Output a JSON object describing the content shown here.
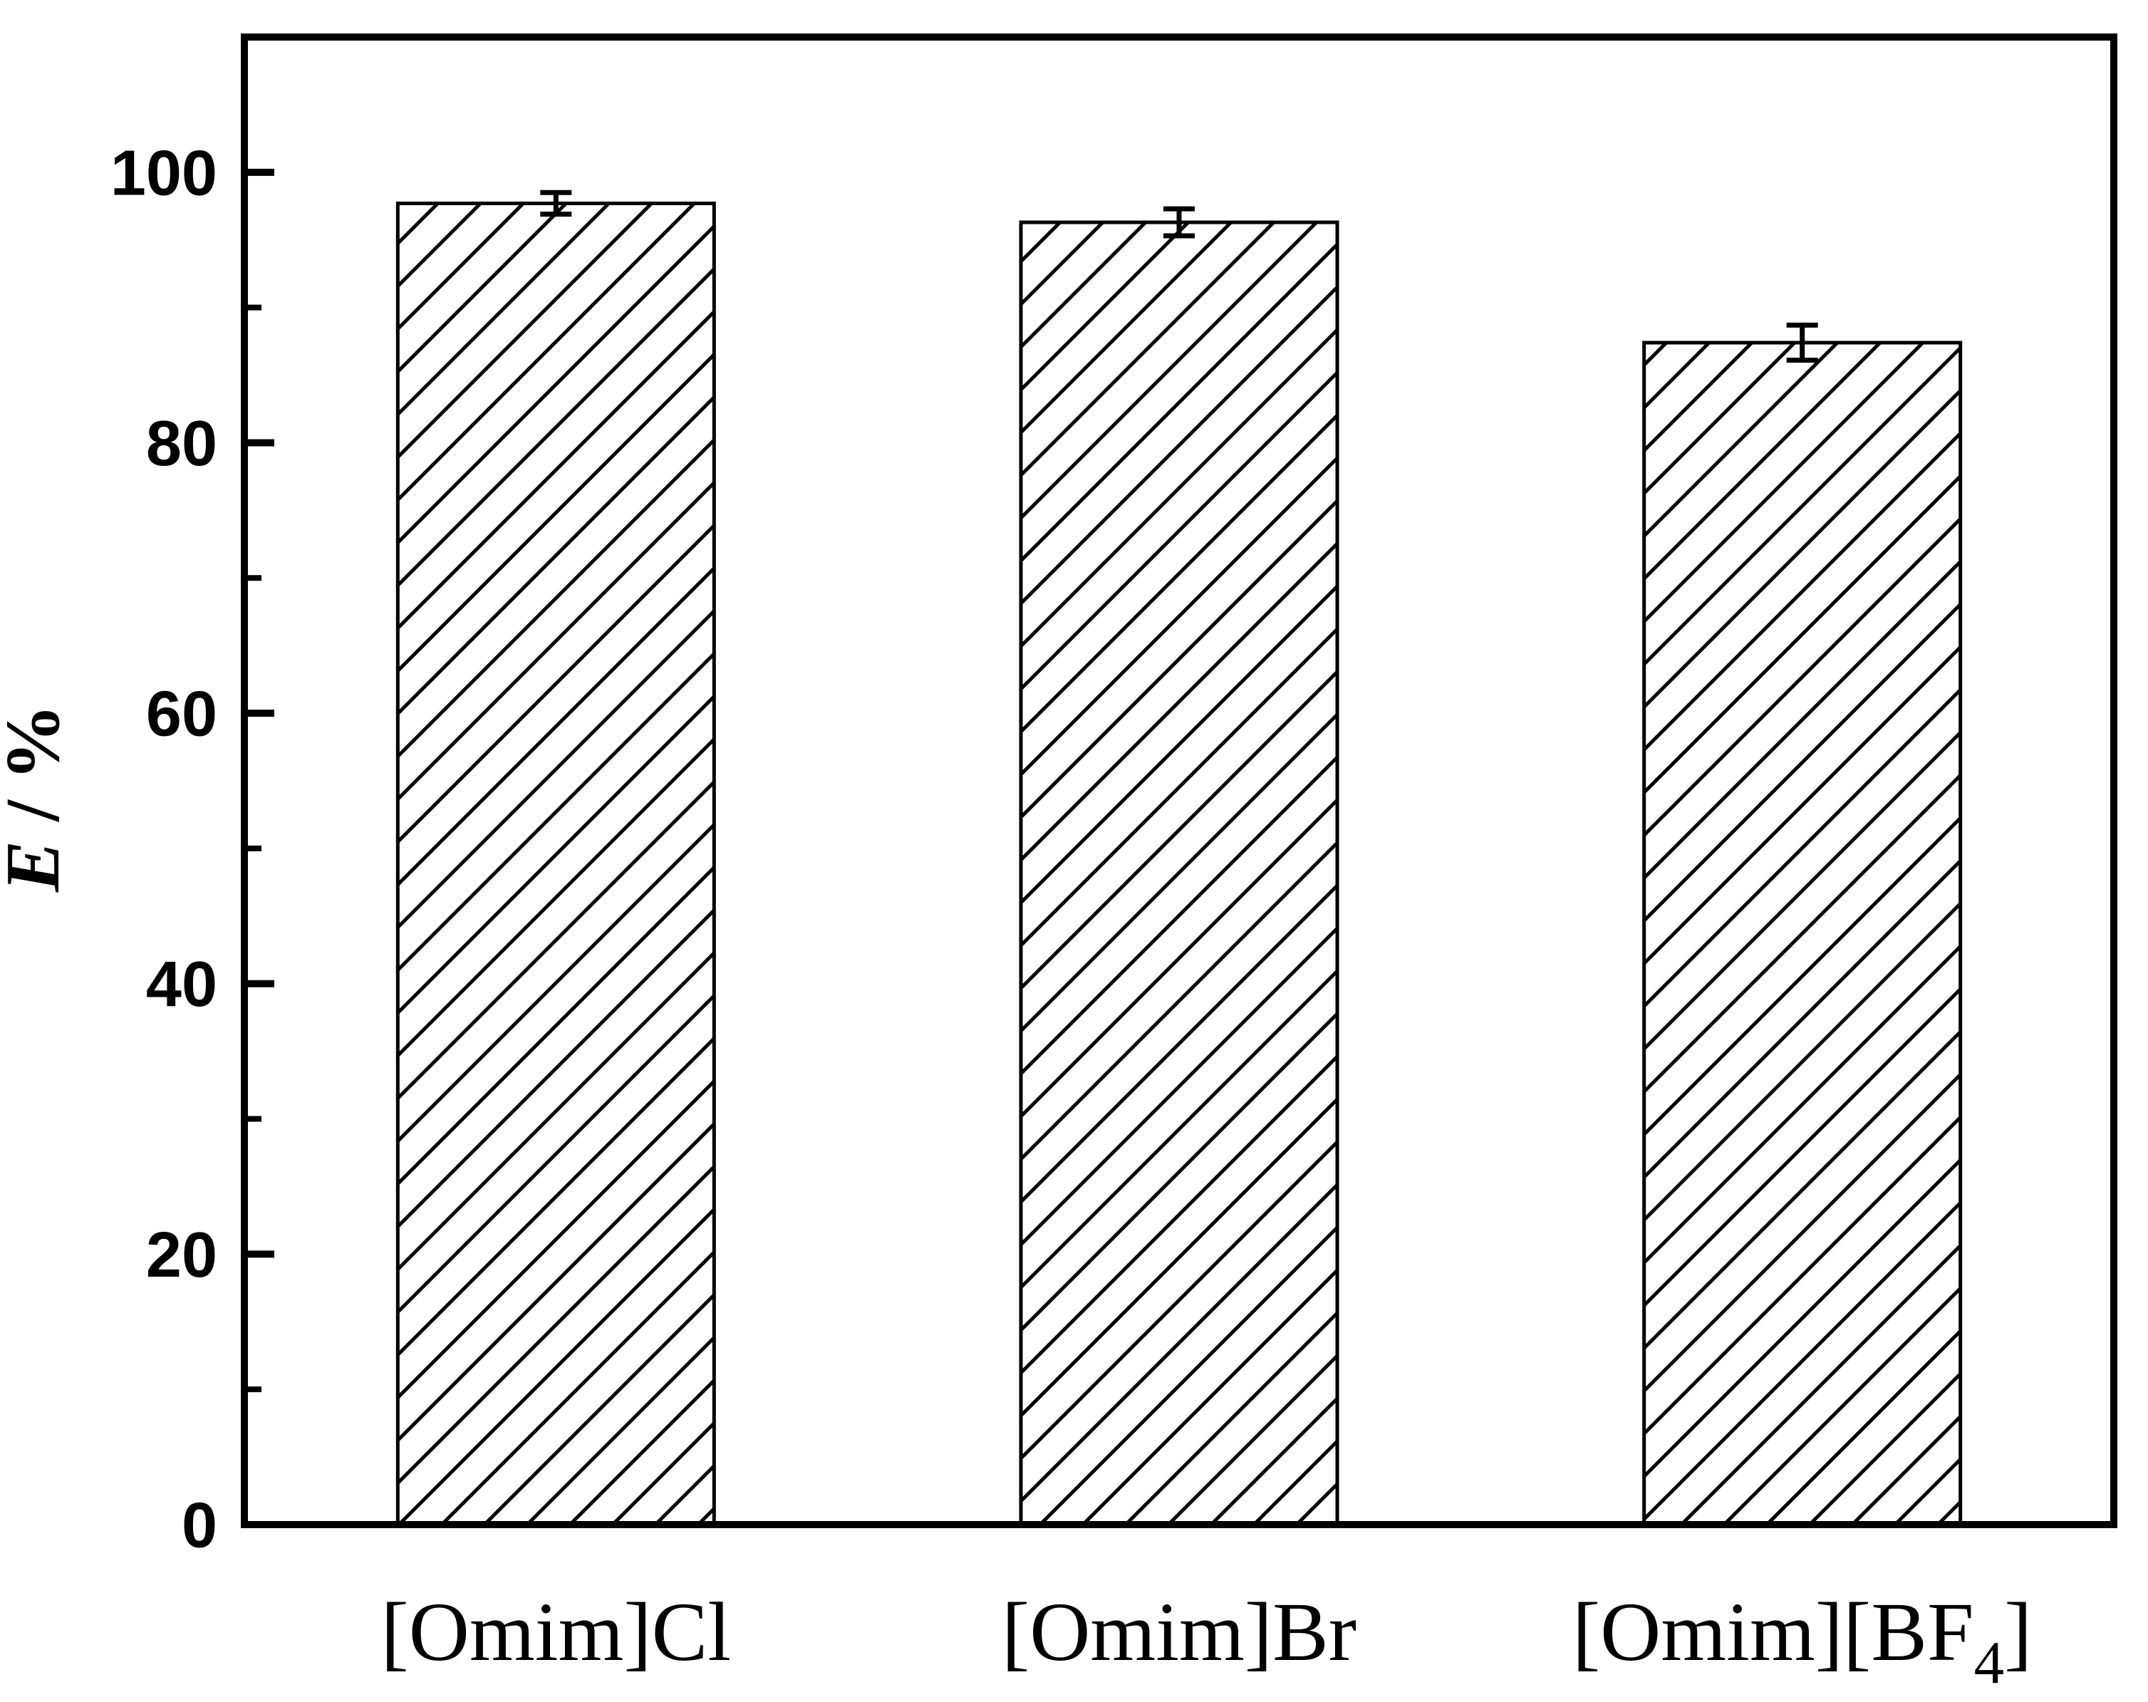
{
  "page": {
    "background_color": "#ffffff",
    "axis_color": "#000000"
  },
  "chart_data": {
    "type": "bar",
    "title": "",
    "xlabel": "",
    "ylabel": "E / %",
    "ylabel_var": "E",
    "ylabel_rest": " / %",
    "ylim": [
      0,
      110
    ],
    "ytick_major_step": 20,
    "ytick_minor_step": 10,
    "ytick_labels": [
      "0",
      "20",
      "40",
      "60",
      "80",
      "100"
    ],
    "categories": [
      "[Omim]Cl",
      "[Omim]Br",
      "[Omim][BF4]"
    ],
    "category_parts": [
      {
        "pre": "[Omim]Cl",
        "sub": "",
        "post": ""
      },
      {
        "pre": "[Omim]Br",
        "sub": "",
        "post": ""
      },
      {
        "pre": "[Omim][BF",
        "sub": "4",
        "post": "]"
      }
    ],
    "values": [
      97.7,
      96.3,
      87.4
    ],
    "errors": [
      0.8,
      1.0,
      1.3
    ],
    "bar_style": {
      "hatch": "/",
      "facecolor": "#ffffff",
      "edgecolor": "#000000"
    },
    "grid": false,
    "legend": null
  }
}
